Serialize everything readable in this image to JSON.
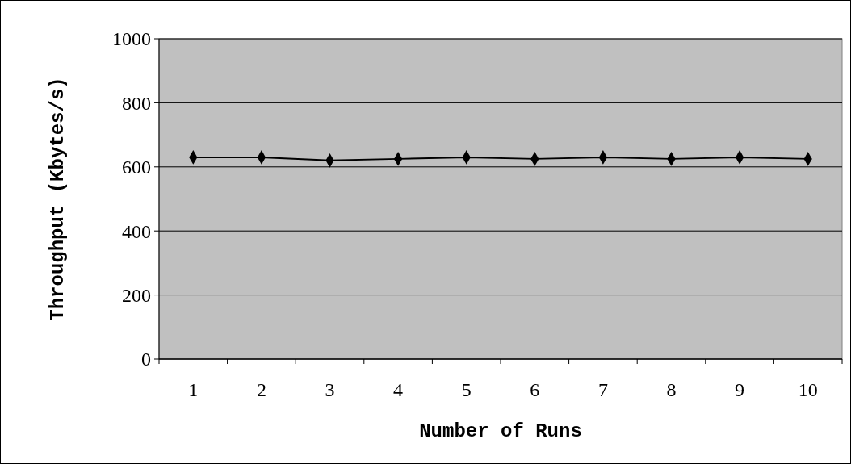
{
  "chart_data": {
    "type": "line",
    "xlabel": "Number of Runs",
    "ylabel": "Throughput (Kbytes/s)",
    "categories": [
      "1",
      "2",
      "3",
      "4",
      "5",
      "6",
      "7",
      "8",
      "9",
      "10"
    ],
    "series": [
      {
        "color": "#000000",
        "values": [
          630,
          630,
          620,
          625,
          630,
          625,
          630,
          625,
          630,
          625
        ]
      }
    ],
    "ylim": [
      0,
      1000
    ],
    "yticks": [
      0,
      200,
      400,
      600,
      800,
      1000
    ],
    "grid": "y",
    "marker": "diamond",
    "line_style": "solid"
  }
}
